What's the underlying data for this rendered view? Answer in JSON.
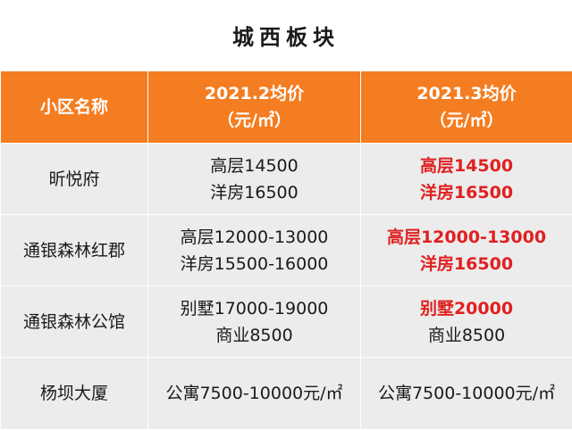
{
  "title": "城西板块",
  "colors": {
    "header_bg": "#f47d21",
    "header_text": "#ffffff",
    "cell_bg": "#ececec",
    "highlight_text": "#e02020"
  },
  "table": {
    "headers": {
      "name": "小区名称",
      "feb_line1": "2021.2均价",
      "feb_line2": "（元/㎡）",
      "mar_line1": "2021.3均价",
      "mar_line2": "（元/㎡）"
    },
    "rows": [
      {
        "name": "昕悦府",
        "feb": [
          "高层14500",
          "洋房16500"
        ],
        "mar": [
          {
            "text": "高层14500",
            "highlight": true
          },
          {
            "text": "洋房16500",
            "highlight": true
          }
        ]
      },
      {
        "name": "通银森林红郡",
        "feb": [
          "高层12000-13000",
          "洋房15500-16000"
        ],
        "mar": [
          {
            "text": "高层12000-13000",
            "highlight": true
          },
          {
            "text": "洋房16500",
            "highlight": true
          }
        ]
      },
      {
        "name": "通银森林公馆",
        "feb": [
          "别墅17000-19000",
          "商业8500"
        ],
        "mar": [
          {
            "text": "别墅20000",
            "highlight": true
          },
          {
            "text": "商业8500",
            "highlight": false
          }
        ]
      },
      {
        "name": "杨坝大厦",
        "feb": [
          "公寓7500-10000元/㎡"
        ],
        "mar": [
          {
            "text": "公寓7500-10000元/㎡",
            "highlight": false
          }
        ]
      }
    ]
  }
}
